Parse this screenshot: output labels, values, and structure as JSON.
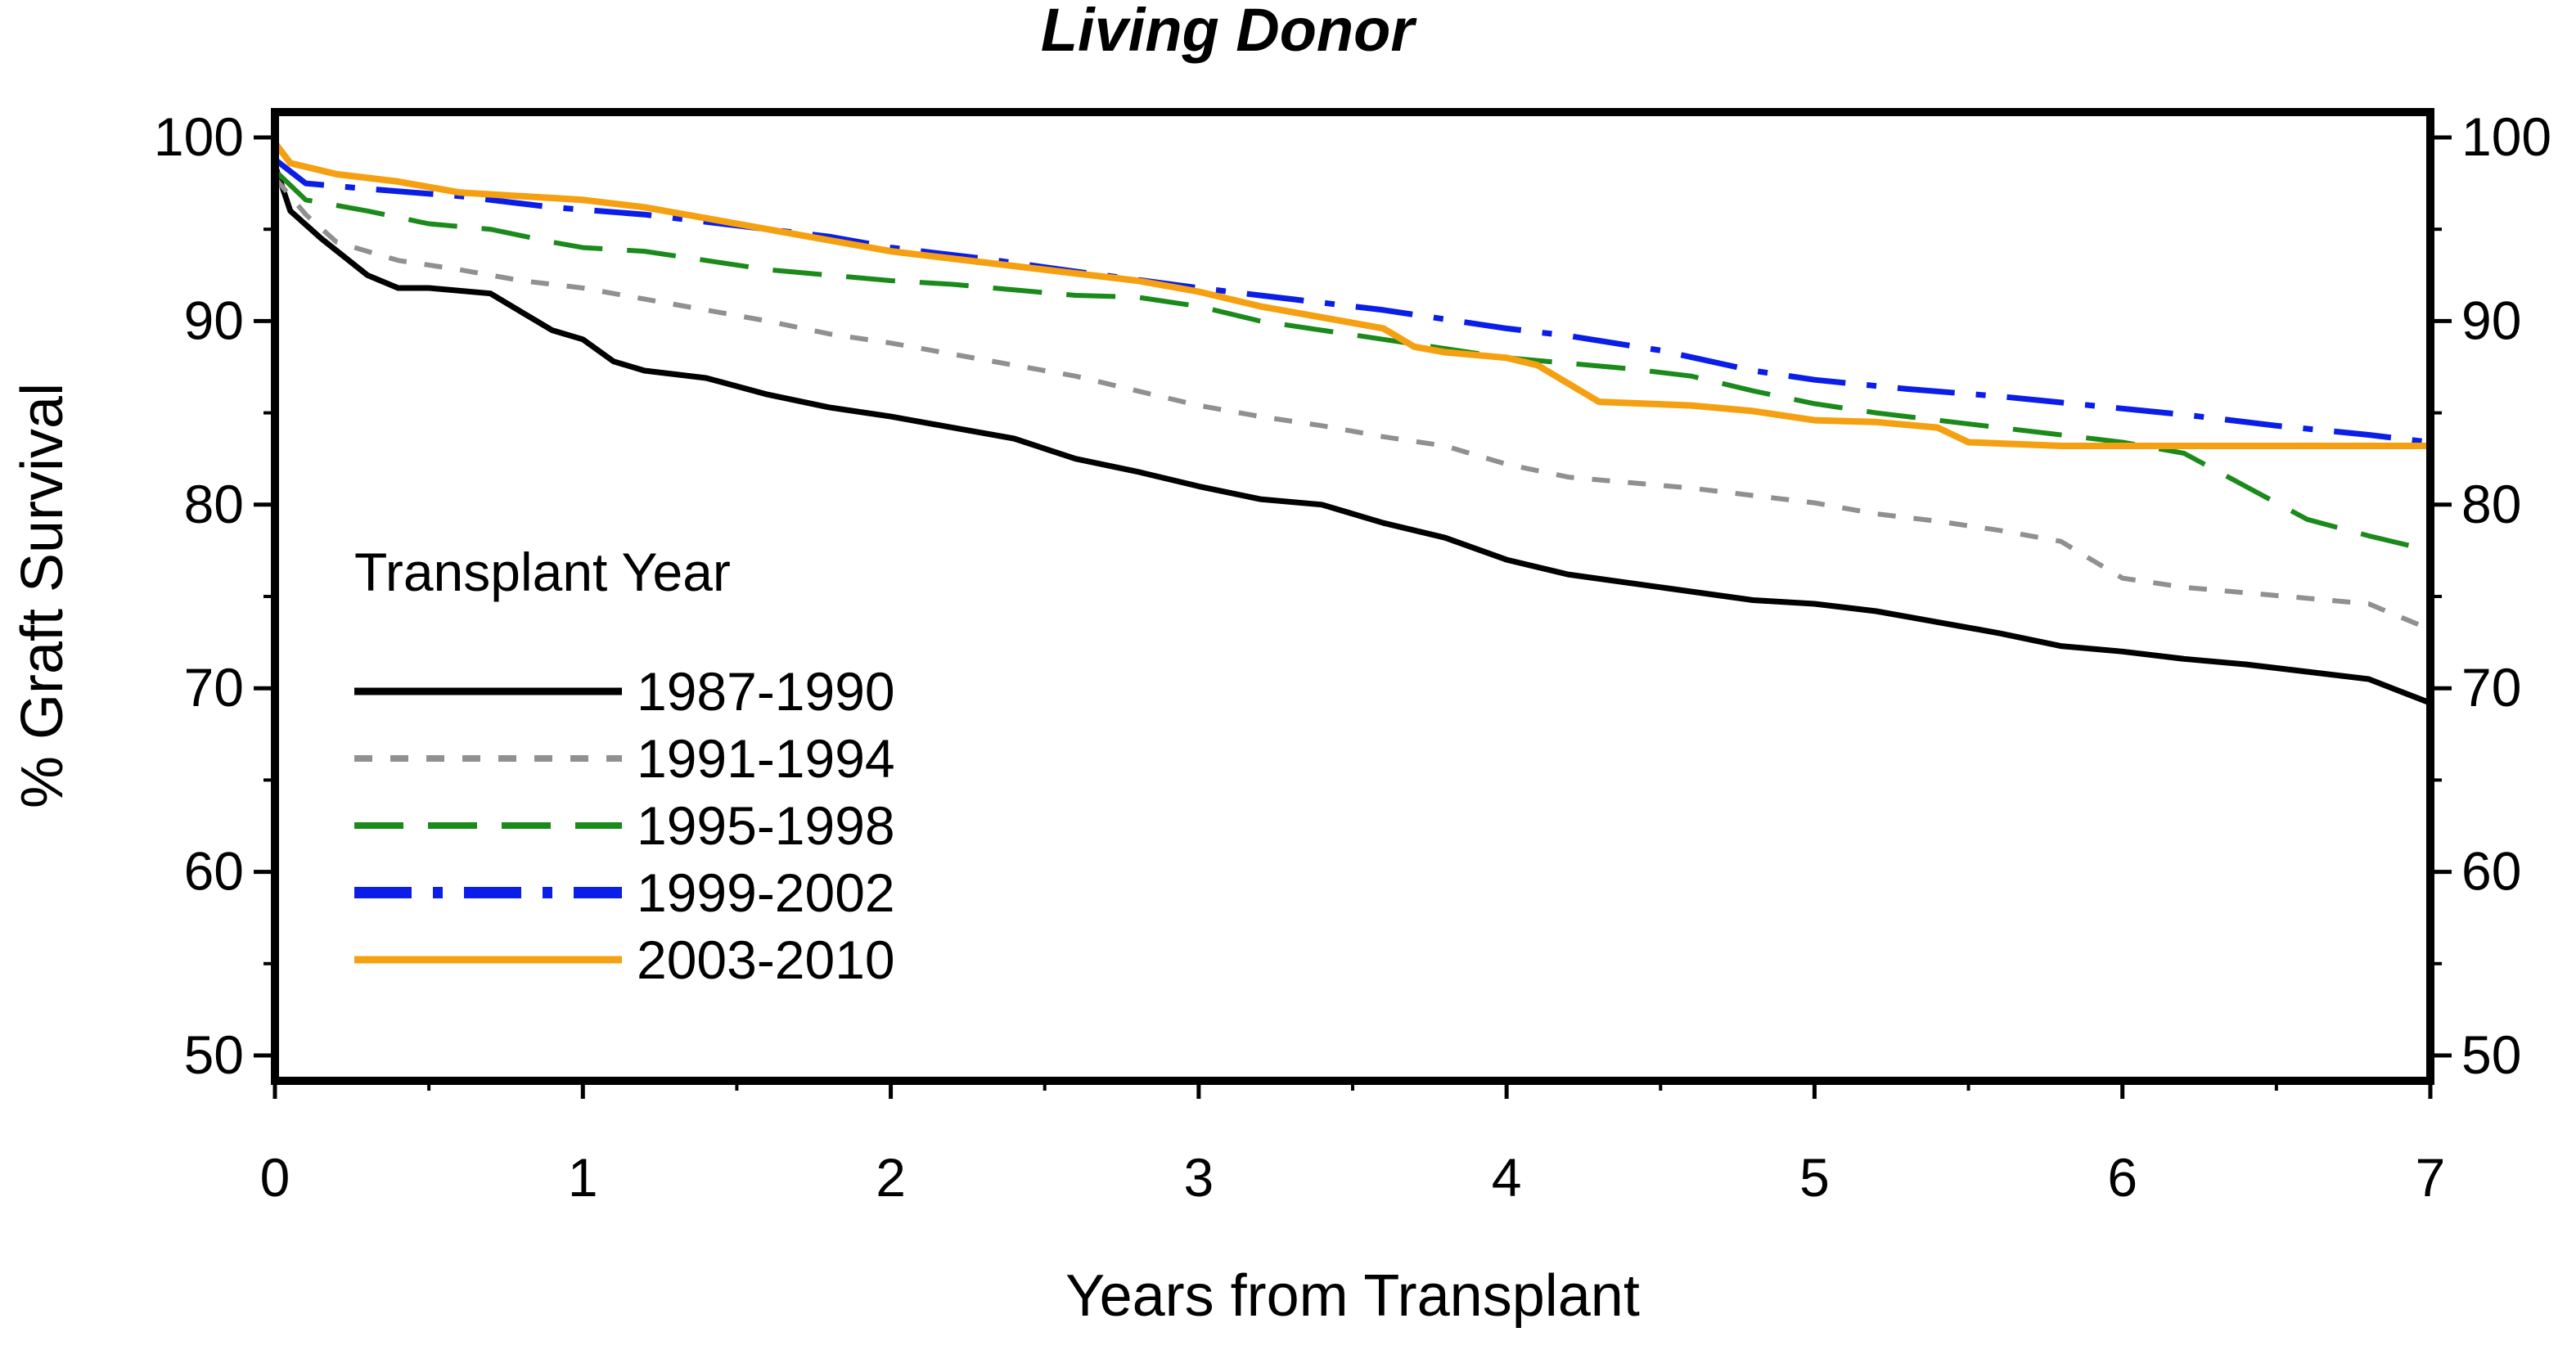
{
  "chart_data": {
    "type": "line",
    "title": "Living Donor",
    "xlabel": "Years from Transplant",
    "ylabel": "% Graft Survival",
    "xlim": [
      0,
      7
    ],
    "ylim": [
      50,
      100
    ],
    "x_ticks": [
      "0",
      "1",
      "2",
      "3",
      "4",
      "5",
      "6",
      "7"
    ],
    "y_ticks": [
      "50",
      "60",
      "70",
      "80",
      "90",
      "100"
    ],
    "legend": {
      "title": "Transplant Year",
      "placement": "lower-left"
    },
    "series": [
      {
        "name": "1987-1990",
        "color": "#000000",
        "dash": "solid",
        "points": [
          [
            0,
            98.5
          ],
          [
            0.05,
            96
          ],
          [
            0.15,
            94.5
          ],
          [
            0.3,
            92.5
          ],
          [
            0.4,
            91.8
          ],
          [
            0.5,
            91.8
          ],
          [
            0.7,
            91.5
          ],
          [
            0.8,
            90.5
          ],
          [
            0.9,
            89.5
          ],
          [
            1.0,
            89
          ],
          [
            1.1,
            87.8
          ],
          [
            1.2,
            87.3
          ],
          [
            1.4,
            86.9
          ],
          [
            1.6,
            86
          ],
          [
            1.8,
            85.3
          ],
          [
            2.0,
            84.8
          ],
          [
            2.2,
            84.2
          ],
          [
            2.4,
            83.6
          ],
          [
            2.6,
            82.5
          ],
          [
            2.8,
            81.8
          ],
          [
            3.0,
            81
          ],
          [
            3.2,
            80.3
          ],
          [
            3.4,
            80
          ],
          [
            3.6,
            79
          ],
          [
            3.8,
            78.2
          ],
          [
            4.0,
            77
          ],
          [
            4.2,
            76.2
          ],
          [
            4.5,
            75.5
          ],
          [
            4.8,
            74.8
          ],
          [
            5.0,
            74.6
          ],
          [
            5.2,
            74.2
          ],
          [
            5.4,
            73.6
          ],
          [
            5.6,
            73
          ],
          [
            5.8,
            72.3
          ],
          [
            6.0,
            72
          ],
          [
            6.2,
            71.6
          ],
          [
            6.4,
            71.3
          ],
          [
            6.6,
            70.9
          ],
          [
            6.8,
            70.5
          ],
          [
            7.0,
            69.2
          ]
        ]
      },
      {
        "name": "1991-1994",
        "color": "#909090",
        "dash": "dotted",
        "points": [
          [
            0,
            97.8
          ],
          [
            0.1,
            95.8
          ],
          [
            0.2,
            94.3
          ],
          [
            0.4,
            93.3
          ],
          [
            0.6,
            92.8
          ],
          [
            0.8,
            92.2
          ],
          [
            1.0,
            91.8
          ],
          [
            1.2,
            91.2
          ],
          [
            1.4,
            90.6
          ],
          [
            1.6,
            90
          ],
          [
            1.8,
            89.3
          ],
          [
            2.0,
            88.8
          ],
          [
            2.2,
            88.2
          ],
          [
            2.4,
            87.6
          ],
          [
            2.6,
            87
          ],
          [
            2.8,
            86.2
          ],
          [
            3.0,
            85.4
          ],
          [
            3.2,
            84.8
          ],
          [
            3.4,
            84.3
          ],
          [
            3.6,
            83.7
          ],
          [
            3.8,
            83.2
          ],
          [
            4.0,
            82.2
          ],
          [
            4.2,
            81.5
          ],
          [
            4.4,
            81.2
          ],
          [
            4.6,
            80.9
          ],
          [
            4.8,
            80.5
          ],
          [
            5.0,
            80.1
          ],
          [
            5.2,
            79.5
          ],
          [
            5.4,
            79.1
          ],
          [
            5.6,
            78.6
          ],
          [
            5.8,
            78.0
          ],
          [
            6.0,
            76.0
          ],
          [
            6.2,
            75.5
          ],
          [
            6.4,
            75.2
          ],
          [
            6.6,
            74.9
          ],
          [
            6.8,
            74.6
          ],
          [
            7.0,
            73.2
          ]
        ]
      },
      {
        "name": "1995-1998",
        "color": "#1a8a1a",
        "dash": "dashed",
        "points": [
          [
            0,
            98.2
          ],
          [
            0.1,
            96.6
          ],
          [
            0.3,
            96
          ],
          [
            0.5,
            95.3
          ],
          [
            0.7,
            95
          ],
          [
            0.9,
            94.3
          ],
          [
            1.0,
            94
          ],
          [
            1.2,
            93.8
          ],
          [
            1.4,
            93.3
          ],
          [
            1.6,
            92.8
          ],
          [
            1.8,
            92.5
          ],
          [
            2.0,
            92.2
          ],
          [
            2.2,
            92
          ],
          [
            2.4,
            91.7
          ],
          [
            2.6,
            91.4
          ],
          [
            2.8,
            91.3
          ],
          [
            3.0,
            90.8
          ],
          [
            3.2,
            90
          ],
          [
            3.4,
            89.5
          ],
          [
            3.6,
            89
          ],
          [
            3.8,
            88.5
          ],
          [
            4.0,
            88
          ],
          [
            4.2,
            87.7
          ],
          [
            4.4,
            87.4
          ],
          [
            4.6,
            87
          ],
          [
            4.8,
            86.2
          ],
          [
            5.0,
            85.5
          ],
          [
            5.2,
            85
          ],
          [
            5.4,
            84.6
          ],
          [
            5.6,
            84.2
          ],
          [
            5.8,
            83.8
          ],
          [
            6.0,
            83.4
          ],
          [
            6.2,
            82.8
          ],
          [
            6.4,
            81
          ],
          [
            6.6,
            79.2
          ],
          [
            6.8,
            78.3
          ],
          [
            7.0,
            77.5
          ]
        ]
      },
      {
        "name": "1999-2002",
        "color": "#0a1ee8",
        "dash": "dash-dot",
        "points": [
          [
            0,
            98.8
          ],
          [
            0.1,
            97.5
          ],
          [
            0.3,
            97.2
          ],
          [
            0.6,
            96.8
          ],
          [
            0.9,
            96.2
          ],
          [
            1.2,
            95.8
          ],
          [
            1.5,
            95.2
          ],
          [
            1.8,
            94.6
          ],
          [
            2.0,
            94
          ],
          [
            2.3,
            93.4
          ],
          [
            2.6,
            92.7
          ],
          [
            3.0,
            91.8
          ],
          [
            3.3,
            91.2
          ],
          [
            3.6,
            90.6
          ],
          [
            3.8,
            90.1
          ],
          [
            4.0,
            89.6
          ],
          [
            4.2,
            89.2
          ],
          [
            4.5,
            88.4
          ],
          [
            4.8,
            87.3
          ],
          [
            5.0,
            86.8
          ],
          [
            5.3,
            86.3
          ],
          [
            5.6,
            85.9
          ],
          [
            5.9,
            85.4
          ],
          [
            6.2,
            84.9
          ],
          [
            6.5,
            84.3
          ],
          [
            6.8,
            83.8
          ],
          [
            7.0,
            83.4
          ]
        ]
      },
      {
        "name": "2003-2010",
        "color": "#f5a010",
        "dash": "solid",
        "points": [
          [
            0,
            99.7
          ],
          [
            0.05,
            98.6
          ],
          [
            0.2,
            98
          ],
          [
            0.4,
            97.6
          ],
          [
            0.6,
            97
          ],
          [
            0.8,
            96.8
          ],
          [
            1.0,
            96.6
          ],
          [
            1.2,
            96.2
          ],
          [
            1.4,
            95.6
          ],
          [
            1.6,
            95
          ],
          [
            1.8,
            94.4
          ],
          [
            2.0,
            93.8
          ],
          [
            2.2,
            93.4
          ],
          [
            2.4,
            93
          ],
          [
            2.6,
            92.6
          ],
          [
            2.8,
            92.2
          ],
          [
            3.0,
            91.6
          ],
          [
            3.2,
            90.8
          ],
          [
            3.4,
            90.2
          ],
          [
            3.6,
            89.6
          ],
          [
            3.7,
            88.6
          ],
          [
            3.8,
            88.3
          ],
          [
            4.0,
            88
          ],
          [
            4.1,
            87.6
          ],
          [
            4.2,
            86.6
          ],
          [
            4.3,
            85.6
          ],
          [
            4.6,
            85.4
          ],
          [
            4.8,
            85.1
          ],
          [
            5.0,
            84.6
          ],
          [
            5.2,
            84.5
          ],
          [
            5.4,
            84.2
          ],
          [
            5.5,
            83.4
          ],
          [
            5.8,
            83.2
          ],
          [
            6.2,
            83.2
          ],
          [
            6.6,
            83.2
          ],
          [
            7.0,
            83.2
          ]
        ]
      }
    ]
  }
}
